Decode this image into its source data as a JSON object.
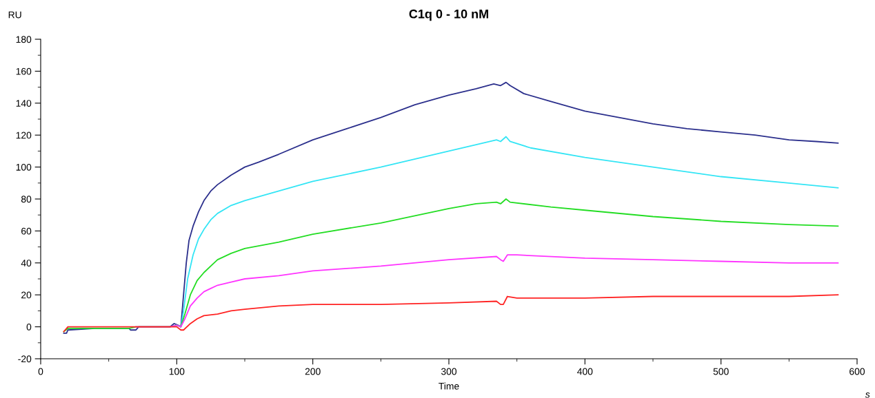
{
  "chart_data": {
    "type": "line",
    "title": "C1q 0 - 10 nM",
    "xlabel": "Time",
    "ylabel": "RU",
    "annotations": [
      "s"
    ],
    "xlim": [
      0,
      600
    ],
    "ylim": [
      -20,
      180
    ],
    "xticks": [
      0,
      {
        "value": 50,
        "label": null
      },
      100,
      {
        "value": 150,
        "label": null
      },
      200,
      {
        "value": 250,
        "label": null
      },
      300,
      {
        "value": 350,
        "label": null
      },
      400,
      {
        "value": 450,
        "label": null
      },
      500,
      {
        "value": 550,
        "label": null
      },
      600
    ],
    "yticks": [
      -20,
      {
        "value": -10,
        "label": null
      },
      0,
      {
        "value": 10,
        "label": null
      },
      20,
      {
        "value": 30,
        "label": null
      },
      40,
      {
        "value": 50,
        "label": null
      },
      60,
      {
        "value": 70,
        "label": null
      },
      80,
      {
        "value": 90,
        "label": null
      },
      100,
      {
        "value": 110,
        "label": null
      },
      120,
      {
        "value": 130,
        "label": null
      },
      140,
      {
        "value": 150,
        "label": null
      },
      160,
      {
        "value": 170,
        "label": null
      },
      180
    ],
    "grid": false,
    "legend": false,
    "marker": "none",
    "line_style": "solid",
    "series": [
      {
        "color": "#2b2f8c",
        "x": [
          17,
          19,
          20,
          40,
          65,
          66,
          70,
          72,
          95,
          98,
          101,
          103,
          105,
          107,
          109,
          112,
          116,
          120,
          125,
          130,
          140,
          150,
          160,
          175,
          200,
          225,
          250,
          275,
          300,
          320,
          333,
          338,
          342,
          345,
          355,
          375,
          400,
          425,
          450,
          475,
          500,
          525,
          550,
          570,
          586
        ],
        "values": [
          -4,
          -4,
          -2,
          -1,
          -1,
          -2,
          -2,
          0,
          0,
          2,
          1,
          0,
          20,
          40,
          54,
          63,
          72,
          79,
          85,
          89,
          95,
          100,
          103,
          108,
          117,
          124,
          131,
          139,
          145,
          149,
          152,
          151,
          153,
          151,
          146,
          141,
          135,
          131,
          127,
          124,
          122,
          120,
          117,
          116,
          115
        ]
      },
      {
        "color": "#33e5f5",
        "x": [
          100,
          103,
          105,
          108,
          112,
          116,
          120,
          125,
          130,
          140,
          150,
          175,
          200,
          250,
          300,
          320,
          335,
          338,
          342,
          345,
          360,
          400,
          450,
          500,
          550,
          586
        ],
        "values": [
          1,
          0,
          10,
          30,
          45,
          55,
          61,
          67,
          71,
          76,
          79,
          85,
          91,
          100,
          110,
          114,
          117,
          116,
          119,
          116,
          112,
          106,
          100,
          94,
          90,
          87
        ]
      },
      {
        "color": "#22dd22",
        "x": [
          17,
          20,
          60,
          65,
          70,
          95,
          100,
          103,
          106,
          110,
          115,
          120,
          125,
          130,
          140,
          150,
          175,
          200,
          250,
          300,
          320,
          335,
          338,
          342,
          345,
          375,
          400,
          450,
          500,
          550,
          586
        ],
        "values": [
          -3,
          -1,
          -1,
          -1,
          0,
          0,
          1,
          0,
          8,
          20,
          29,
          34,
          38,
          42,
          46,
          49,
          53,
          58,
          65,
          74,
          77,
          78,
          77,
          80,
          78,
          75,
          73,
          69,
          66,
          64,
          63
        ]
      },
      {
        "color": "#ff33ff",
        "x": [
          70,
          95,
          100,
          103,
          106,
          110,
          115,
          120,
          125,
          130,
          140,
          150,
          175,
          200,
          250,
          300,
          335,
          338,
          340,
          343,
          350,
          400,
          450,
          500,
          550,
          586
        ],
        "values": [
          0,
          0,
          1,
          0,
          5,
          13,
          18,
          22,
          24,
          26,
          28,
          30,
          32,
          35,
          38,
          42,
          44,
          42,
          41,
          45,
          45,
          43,
          42,
          41,
          40,
          40
        ]
      },
      {
        "color": "#ff2222",
        "x": [
          17,
          20,
          60,
          70,
          95,
          100,
          103,
          105,
          110,
          115,
          120,
          130,
          140,
          150,
          175,
          200,
          250,
          300,
          335,
          338,
          340,
          343,
          350,
          400,
          450,
          500,
          550,
          586
        ],
        "values": [
          -3,
          0,
          0,
          0,
          0,
          0,
          -2,
          -2,
          2,
          5,
          7,
          8,
          10,
          11,
          13,
          14,
          14,
          15,
          16,
          14,
          14,
          19,
          18,
          18,
          19,
          19,
          19,
          20
        ]
      }
    ]
  }
}
